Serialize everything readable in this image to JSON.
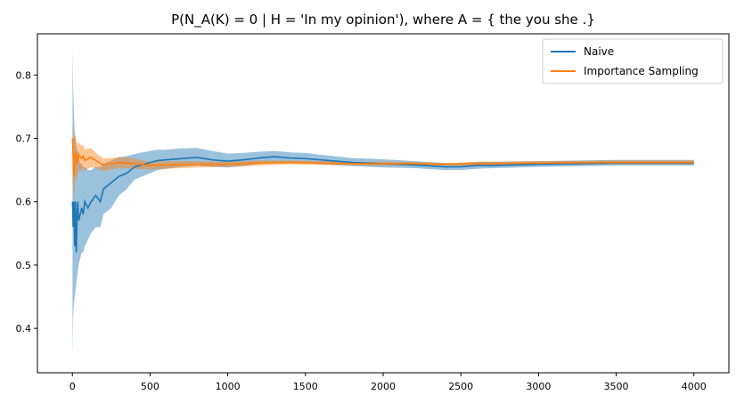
{
  "chart_data": {
    "type": "line",
    "title": "P(N_A(K) = 0 | H = 'In my opinion'), where A = { the you she .}",
    "xlabel": "",
    "ylabel": "",
    "xlim": [
      -225,
      4225
    ],
    "ylim": [
      0.33,
      0.865
    ],
    "xticks": [
      0,
      500,
      1000,
      1500,
      2000,
      2500,
      3000,
      3500,
      4000
    ],
    "yticks": [
      0.4,
      0.5,
      0.6,
      0.7,
      0.8
    ],
    "ytick_labels": [
      "0.4",
      "0.5",
      "0.6",
      "0.7",
      "0.8"
    ],
    "grid": false,
    "legend_position": "top-right",
    "series": [
      {
        "name": "Naive",
        "color": "#1f77b4",
        "band_color": "#1f77b4",
        "x": [
          1,
          5,
          10,
          15,
          20,
          25,
          30,
          35,
          40,
          50,
          60,
          70,
          80,
          100,
          120,
          150,
          180,
          200,
          250,
          300,
          350,
          400,
          450,
          500,
          550,
          600,
          700,
          800,
          900,
          1000,
          1100,
          1200,
          1300,
          1400,
          1500,
          1600,
          1800,
          2000,
          2200,
          2400,
          2500,
          2600,
          2700,
          3000,
          3500,
          4000
        ],
        "y": [
          0.6,
          0.56,
          0.6,
          0.53,
          0.6,
          0.52,
          0.58,
          0.6,
          0.57,
          0.58,
          0.59,
          0.58,
          0.6,
          0.59,
          0.6,
          0.61,
          0.6,
          0.62,
          0.63,
          0.64,
          0.645,
          0.655,
          0.658,
          0.662,
          0.665,
          0.666,
          0.668,
          0.67,
          0.666,
          0.664,
          0.666,
          0.669,
          0.671,
          0.669,
          0.668,
          0.666,
          0.662,
          0.66,
          0.658,
          0.655,
          0.655,
          0.657,
          0.657,
          0.659,
          0.661,
          0.661
        ],
        "lower": [
          0.36,
          0.42,
          0.44,
          0.45,
          0.46,
          0.47,
          0.48,
          0.49,
          0.5,
          0.51,
          0.52,
          0.52,
          0.53,
          0.54,
          0.55,
          0.56,
          0.56,
          0.58,
          0.59,
          0.61,
          0.62,
          0.635,
          0.64,
          0.645,
          0.65,
          0.652,
          0.655,
          0.657,
          0.655,
          0.654,
          0.656,
          0.66,
          0.662,
          0.661,
          0.661,
          0.659,
          0.656,
          0.654,
          0.653,
          0.65,
          0.65,
          0.652,
          0.653,
          0.655,
          0.657,
          0.657
        ],
        "upper": [
          0.84,
          0.78,
          0.74,
          0.71,
          0.7,
          0.69,
          0.68,
          0.68,
          0.67,
          0.66,
          0.66,
          0.655,
          0.655,
          0.65,
          0.65,
          0.655,
          0.655,
          0.66,
          0.665,
          0.67,
          0.672,
          0.675,
          0.678,
          0.68,
          0.682,
          0.682,
          0.684,
          0.685,
          0.68,
          0.676,
          0.677,
          0.679,
          0.68,
          0.678,
          0.677,
          0.674,
          0.669,
          0.667,
          0.664,
          0.661,
          0.661,
          0.663,
          0.663,
          0.664,
          0.666,
          0.666
        ]
      },
      {
        "name": "Importance Sampling",
        "color": "#ff7f0e",
        "band_color": "#ff7f0e",
        "x": [
          1,
          5,
          10,
          20,
          30,
          40,
          50,
          60,
          70,
          80,
          100,
          120,
          150,
          200,
          250,
          300,
          400,
          500,
          600,
          800,
          1000,
          1200,
          1400,
          1600,
          1800,
          2000,
          2200,
          2400,
          2600,
          3000,
          3500,
          4000
        ],
        "y": [
          0.7,
          0.67,
          0.64,
          0.68,
          0.66,
          0.675,
          0.67,
          0.668,
          0.672,
          0.665,
          0.668,
          0.67,
          0.665,
          0.658,
          0.66,
          0.662,
          0.66,
          0.657,
          0.658,
          0.659,
          0.659,
          0.661,
          0.662,
          0.661,
          0.66,
          0.66,
          0.66,
          0.659,
          0.66,
          0.661,
          0.662,
          0.662
        ],
        "lower": [
          0.63,
          0.62,
          0.6,
          0.64,
          0.635,
          0.65,
          0.65,
          0.648,
          0.655,
          0.648,
          0.652,
          0.655,
          0.653,
          0.648,
          0.651,
          0.653,
          0.652,
          0.651,
          0.652,
          0.654,
          0.655,
          0.657,
          0.659,
          0.658,
          0.657,
          0.657,
          0.657,
          0.657,
          0.657,
          0.658,
          0.659,
          0.659
        ],
        "upper": [
          0.72,
          0.71,
          0.7,
          0.705,
          0.69,
          0.695,
          0.69,
          0.688,
          0.69,
          0.682,
          0.684,
          0.685,
          0.677,
          0.668,
          0.669,
          0.671,
          0.668,
          0.663,
          0.664,
          0.664,
          0.663,
          0.665,
          0.665,
          0.664,
          0.663,
          0.663,
          0.663,
          0.661,
          0.663,
          0.664,
          0.665,
          0.665
        ]
      }
    ]
  }
}
